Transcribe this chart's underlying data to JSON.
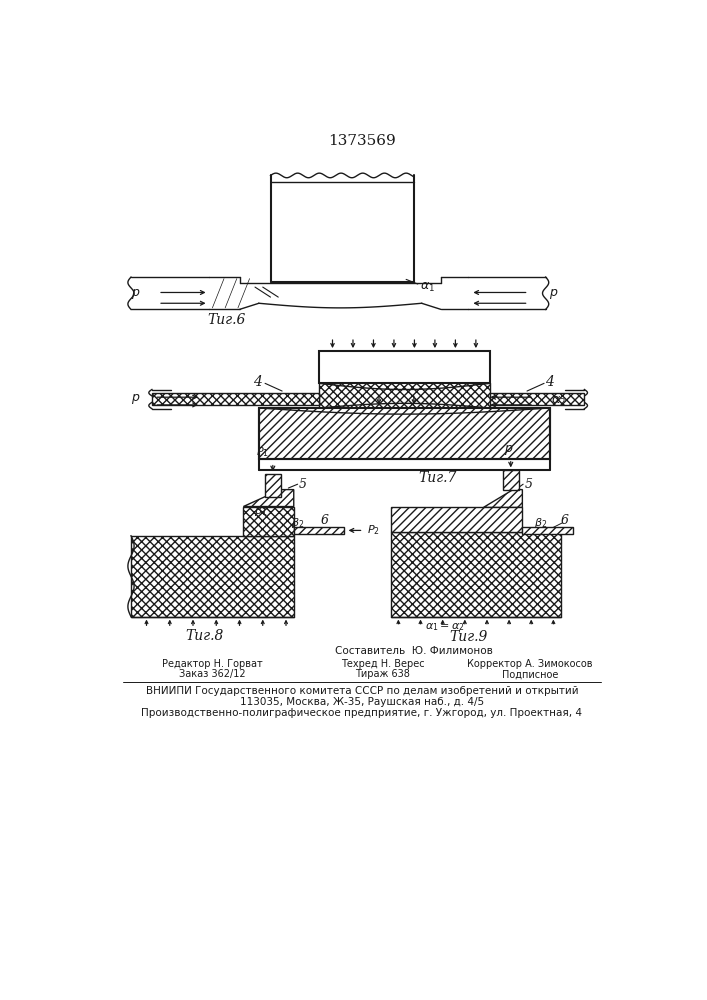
{
  "title": "1373569",
  "bg_color": "#ffffff",
  "lc": "#1a1a1a",
  "fig6_label": "Τиг.6",
  "fig7_label": "Τиг.7",
  "fig8_label": "Τиг.8",
  "fig9_label": "Τиг.9",
  "footer_composer": "Составитель  Ю. Филимонов",
  "footer_editor": "Редактор Н. Горват",
  "footer_tech": "Техред Н. Верес",
  "footer_corrector": "Корректор А. Зимокосов",
  "footer_order": "Заказ 362/12",
  "footer_tirazh": "Тираж 638",
  "footer_podp": "Подписное",
  "footer_vniip": "ВНИИПИ Государственного комитета СССР по делам изобретений и открытий",
  "footer_addr": "113035, Москва, Ж-35, Раушская наб., д. 4/5",
  "footer_prod": "Производственно-полиграфическое предприятие, г. Ужгород, ул. Проектная, 4"
}
